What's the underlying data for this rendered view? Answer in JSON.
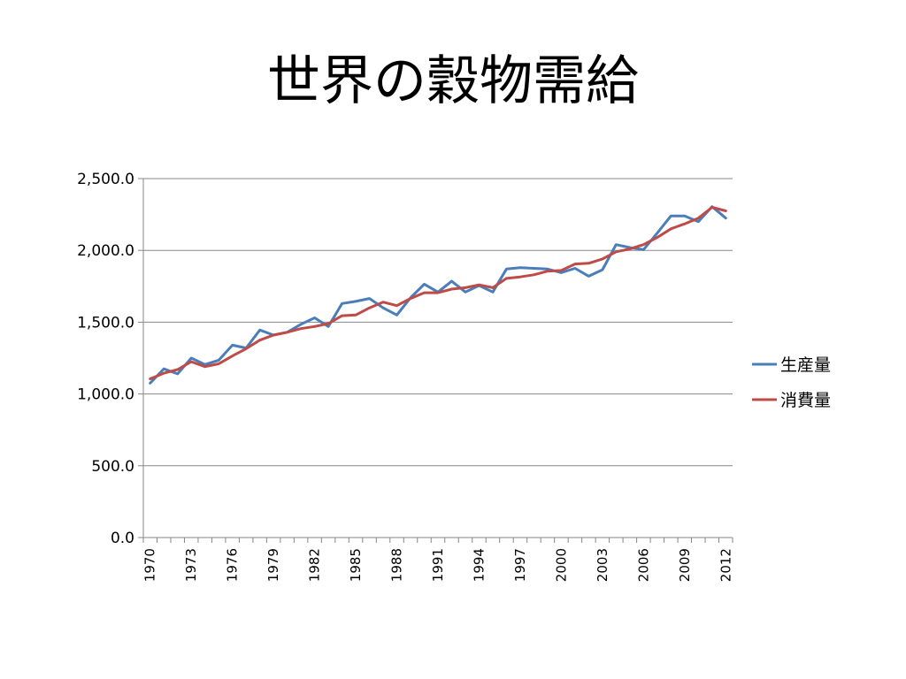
{
  "slide": {
    "title": "世界の穀物需給"
  },
  "chart_data": {
    "type": "line",
    "title": "世界の穀物需給",
    "xlabel": "",
    "ylabel": "",
    "ylim": [
      0,
      2500
    ],
    "yticks": [
      "0.0",
      "500.0",
      "1,000.0",
      "1,500.0",
      "2,000.0",
      "2,500.0"
    ],
    "grid": true,
    "legend_position": "right",
    "x": [
      1970,
      1971,
      1972,
      1973,
      1974,
      1975,
      1976,
      1977,
      1978,
      1979,
      1980,
      1981,
      1982,
      1983,
      1984,
      1985,
      1986,
      1987,
      1988,
      1989,
      1990,
      1991,
      1992,
      1993,
      1994,
      1995,
      1996,
      1997,
      1998,
      1999,
      2000,
      2001,
      2002,
      2003,
      2004,
      2005,
      2006,
      2007,
      2008,
      2009,
      2010,
      2011,
      2012
    ],
    "xtick_labels": [
      "1970",
      "1973",
      "1976",
      "1979",
      "1982",
      "1985",
      "1988",
      "1991",
      "1994",
      "1997",
      "2000",
      "2003",
      "2006",
      "2009",
      "2012"
    ],
    "series": [
      {
        "name": "生産量",
        "color": "#4a7ebb",
        "values": [
          1075,
          1175,
          1140,
          1250,
          1205,
          1235,
          1340,
          1320,
          1445,
          1410,
          1430,
          1485,
          1530,
          1470,
          1630,
          1645,
          1665,
          1600,
          1550,
          1670,
          1765,
          1710,
          1785,
          1710,
          1755,
          1710,
          1870,
          1880,
          1875,
          1870,
          1845,
          1875,
          1820,
          1865,
          2040,
          2020,
          2005,
          2120,
          2240,
          2240,
          2200,
          2305,
          2225
        ]
      },
      {
        "name": "消費量",
        "color": "#be4b48",
        "values": [
          1105,
          1145,
          1170,
          1225,
          1190,
          1210,
          1265,
          1315,
          1375,
          1410,
          1430,
          1455,
          1470,
          1490,
          1545,
          1550,
          1600,
          1640,
          1615,
          1665,
          1705,
          1705,
          1730,
          1740,
          1760,
          1740,
          1805,
          1815,
          1830,
          1855,
          1860,
          1905,
          1910,
          1940,
          1990,
          2010,
          2040,
          2090,
          2150,
          2185,
          2225,
          2300,
          2275
        ]
      }
    ]
  }
}
